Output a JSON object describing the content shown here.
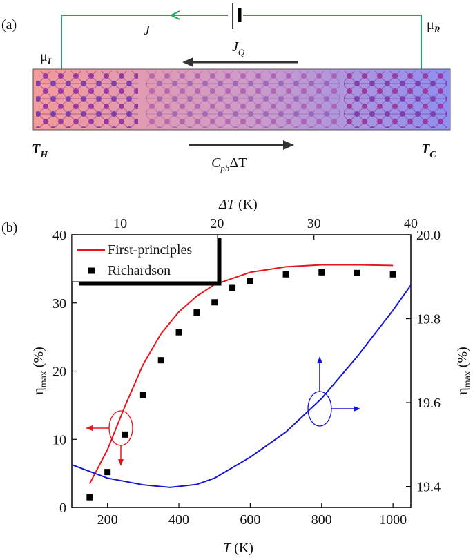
{
  "panel_a": {
    "label": "(a)",
    "current": "J",
    "mu_left": {
      "main": "μ",
      "sub": "L"
    },
    "mu_right": {
      "main": "μ",
      "sub": "R"
    },
    "heat_current": {
      "main": "J",
      "sub": "Q"
    },
    "hot_side": {
      "main": "T",
      "sub": "H"
    },
    "cold_side": {
      "main": "T",
      "sub": "C"
    },
    "phonon": {
      "main": "C",
      "sub": "ph",
      "tail": "ΔT"
    }
  },
  "panel_b": {
    "label": "(b)"
  },
  "chart_data": {
    "type": "line",
    "xlabel": {
      "symbol": "T",
      "unit": " (K)"
    },
    "x2label": {
      "symbol": "ΔT",
      "unit": " (K)"
    },
    "ylabel": {
      "symbol": "η",
      "subscript": "max",
      "unit": " (%)"
    },
    "y2label": {
      "symbol": "η",
      "subscript": "max",
      "unit": " (%)"
    },
    "xlim": [
      100,
      1050
    ],
    "xticks": [
      200,
      400,
      600,
      800,
      1000
    ],
    "x2lim": [
      5,
      40
    ],
    "x2ticks": [
      10,
      20,
      30,
      40
    ],
    "ylim": [
      0,
      40
    ],
    "yticks": [
      0,
      10,
      20,
      30,
      40
    ],
    "y2lim": [
      19.35,
      20.0
    ],
    "y2ticks": [
      19.4,
      19.6,
      19.8,
      {
        "value": 20.0,
        "label": "20.0"
      }
    ],
    "legend": "upper left",
    "series": [
      {
        "name": "First-principles",
        "type": "line",
        "color": "#e8141c",
        "x": [
          150,
          200,
          250,
          300,
          350,
          400,
          450,
          500,
          600,
          700,
          800,
          900,
          1000
        ],
        "values": [
          3.5,
          8.5,
          15,
          21,
          25.5,
          28.7,
          31,
          32.7,
          34.5,
          35.3,
          35.6,
          35.6,
          35.5
        ]
      },
      {
        "name": "Richardson",
        "type": "scatter",
        "color": "#000000",
        "x": [
          150,
          200,
          250,
          300,
          350,
          400,
          450,
          500,
          550,
          600,
          700,
          800,
          900,
          1000
        ],
        "values": [
          1.5,
          5.2,
          10.7,
          16.5,
          21.6,
          25.7,
          28.6,
          30.1,
          32.2,
          33.2,
          34.2,
          34.5,
          34.4,
          34.2
        ]
      },
      {
        "type": "line",
        "axis": "y2",
        "color": "#1414d2",
        "x": [
          100,
          200,
          300,
          375,
          450,
          500,
          600,
          700,
          800,
          900,
          1000,
          1050
        ],
        "values": [
          19.452,
          19.42,
          19.404,
          19.398,
          19.405,
          19.42,
          19.47,
          19.53,
          19.61,
          19.71,
          19.82,
          19.88
        ]
      }
    ]
  }
}
